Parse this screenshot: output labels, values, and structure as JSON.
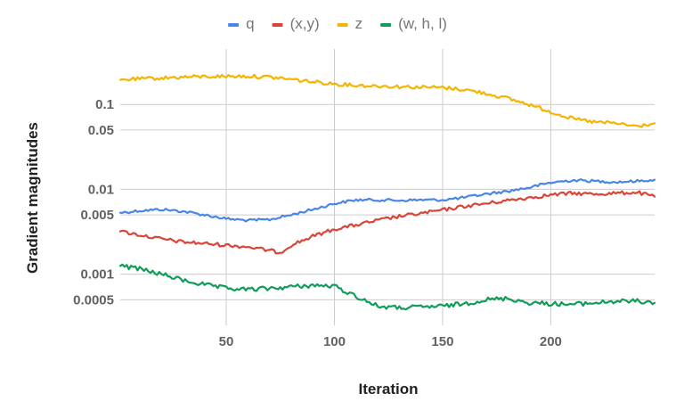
{
  "chart_data": {
    "type": "line",
    "title": "",
    "xlabel": "Iteration",
    "ylabel": "Gradient magnitudes",
    "yscale": "log",
    "xlim": [
      1,
      248
    ],
    "ylim": [
      0.00025,
      0.45
    ],
    "xticks": [
      50,
      100,
      150,
      200
    ],
    "xtick_labels": [
      "50",
      "100",
      "150",
      "200"
    ],
    "yticks": [
      0.0005,
      0.001,
      0.005,
      0.01,
      0.05,
      0.1
    ],
    "ytick_labels": [
      "0.0005",
      "0.001",
      "0.005",
      "0.01",
      "0.05",
      "0.1"
    ],
    "grid": true,
    "legend_position": "top-center",
    "series": [
      {
        "name": "q",
        "color": "#4a86e8",
        "x": [
          1,
          10,
          20,
          30,
          40,
          50,
          60,
          70,
          80,
          90,
          100,
          110,
          120,
          130,
          140,
          150,
          160,
          170,
          180,
          190,
          200,
          210,
          220,
          230,
          240,
          248
        ],
        "values": [
          0.0053,
          0.0056,
          0.0058,
          0.0055,
          0.005,
          0.0045,
          0.0043,
          0.0044,
          0.005,
          0.0058,
          0.0068,
          0.0075,
          0.0075,
          0.0074,
          0.0075,
          0.0075,
          0.008,
          0.0088,
          0.0095,
          0.0105,
          0.012,
          0.0128,
          0.0125,
          0.0122,
          0.0125,
          0.013
        ]
      },
      {
        "name": "(x,y)",
        "color": "#db4437",
        "x": [
          1,
          10,
          20,
          30,
          40,
          50,
          60,
          70,
          75,
          80,
          90,
          100,
          110,
          120,
          130,
          140,
          150,
          160,
          170,
          180,
          190,
          200,
          210,
          220,
          230,
          240,
          248
        ],
        "values": [
          0.0032,
          0.0029,
          0.0026,
          0.0024,
          0.0023,
          0.0022,
          0.0021,
          0.0019,
          0.0018,
          0.0022,
          0.0028,
          0.0034,
          0.0038,
          0.0043,
          0.0048,
          0.0052,
          0.0057,
          0.0063,
          0.0068,
          0.0074,
          0.008,
          0.0086,
          0.009,
          0.0088,
          0.009,
          0.0092,
          0.0082
        ]
      },
      {
        "name": "z",
        "color": "#f4b400",
        "x": [
          1,
          10,
          20,
          30,
          40,
          50,
          60,
          70,
          80,
          90,
          100,
          110,
          120,
          130,
          140,
          150,
          160,
          170,
          180,
          190,
          200,
          210,
          220,
          230,
          240,
          248
        ],
        "values": [
          0.195,
          0.2,
          0.205,
          0.21,
          0.213,
          0.215,
          0.215,
          0.21,
          0.198,
          0.185,
          0.175,
          0.168,
          0.165,
          0.162,
          0.16,
          0.158,
          0.15,
          0.135,
          0.118,
          0.1,
          0.082,
          0.068,
          0.062,
          0.06,
          0.055,
          0.06
        ]
      },
      {
        "name": "(w, h, l)",
        "color": "#0f9d58",
        "x": [
          1,
          10,
          20,
          30,
          40,
          50,
          60,
          70,
          80,
          90,
          100,
          110,
          120,
          130,
          140,
          150,
          160,
          170,
          180,
          190,
          200,
          210,
          220,
          230,
          240,
          248
        ],
        "values": [
          0.00125,
          0.00115,
          0.001,
          0.00085,
          0.00075,
          0.00068,
          0.00066,
          0.00068,
          0.00071,
          0.00074,
          0.00072,
          0.00055,
          0.00042,
          0.0004,
          0.00041,
          0.00042,
          0.00045,
          0.0005,
          0.00052,
          0.00046,
          0.00045,
          0.00044,
          0.00046,
          0.00048,
          0.00048,
          0.00046
        ]
      }
    ]
  }
}
